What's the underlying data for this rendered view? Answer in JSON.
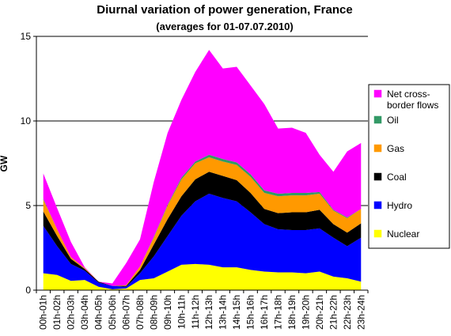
{
  "chart_data": {
    "type": "area",
    "stacked": true,
    "title": "Diurnal variation of power generation, France",
    "subtitle": "(averages for 01-07.07.2010)",
    "xlabel": "",
    "ylabel": "GW",
    "ylim": [
      0,
      15
    ],
    "yticks": [
      "0",
      "5",
      "10",
      "15"
    ],
    "grid": true,
    "legend_position": "right",
    "categories": [
      "00h-01h",
      "01h-02h",
      "02h-03h",
      "03h-04h",
      "04h-05h",
      "05h-06h",
      "06h-07h",
      "07h-08h",
      "08h-09h",
      "09h-10h",
      "10h-11h",
      "11h-12h",
      "12h-13h",
      "13h-14h",
      "14h-15h",
      "15h-16h",
      "16h-17h",
      "17h-18h",
      "18h-19h",
      "19h-20h",
      "20h-21h",
      "21h-22h",
      "22h-23h",
      "23h-24h"
    ],
    "x_tick_labels": [
      "00h-01h",
      "01h-02h",
      "02h-03h",
      "03h-04h",
      "04h-05h",
      "05h-06h",
      "06h-07h",
      "07h-08h",
      "08h-09h",
      "09h-10h",
      "10h-11h",
      "11h-12h",
      "12h-13h",
      "13h-14h",
      "14h-15h",
      "15h-16h",
      "16h-17h",
      "17h-18h",
      "18h-19h",
      "19h-20h",
      "20h-21h",
      "21h-22h",
      "22h-23h",
      "23h-24h"
    ],
    "series": [
      {
        "name": "Nuclear",
        "color": "#ffff00",
        "values": [
          1.0,
          0.9,
          0.55,
          0.6,
          0.2,
          0.05,
          0.1,
          0.6,
          0.7,
          1.1,
          1.5,
          1.55,
          1.5,
          1.35,
          1.35,
          1.2,
          1.1,
          1.05,
          1.05,
          1.0,
          1.1,
          0.8,
          0.7,
          0.5
        ]
      },
      {
        "name": "Hydro",
        "color": "#0000ff",
        "values": [
          2.8,
          1.7,
          1.0,
          0.55,
          0.25,
          0.2,
          0.1,
          0.4,
          1.3,
          2.1,
          2.9,
          3.7,
          4.2,
          4.1,
          3.9,
          3.4,
          2.8,
          2.55,
          2.5,
          2.55,
          2.55,
          2.3,
          1.9,
          2.6
        ]
      },
      {
        "name": "Coal",
        "color": "#000000",
        "values": [
          0.85,
          0.6,
          0.3,
          0.1,
          0.05,
          0.0,
          0.05,
          0.2,
          0.7,
          1.0,
          1.15,
          1.3,
          1.3,
          1.3,
          1.25,
          1.15,
          0.9,
          0.95,
          1.05,
          1.05,
          1.1,
          0.8,
          0.8,
          0.85
        ]
      },
      {
        "name": "Gas",
        "color": "#ff9900",
        "values": [
          0.7,
          0.4,
          0.1,
          0.05,
          0.0,
          0.0,
          0.05,
          0.2,
          0.4,
          0.8,
          1.0,
          0.95,
          0.85,
          0.85,
          0.9,
          0.95,
          0.95,
          1.0,
          1.0,
          1.0,
          0.95,
          0.8,
          0.85,
          0.85
        ]
      },
      {
        "name": "Oil",
        "color": "#339966",
        "values": [
          0.05,
          0.0,
          0.0,
          0.0,
          0.0,
          0.0,
          0.0,
          0.0,
          0.05,
          0.05,
          0.1,
          0.1,
          0.15,
          0.15,
          0.15,
          0.15,
          0.15,
          0.15,
          0.15,
          0.15,
          0.1,
          0.05,
          0.05,
          0.0
        ]
      },
      {
        "name": "Net cross-border flows",
        "color": "#ff00ff",
        "values": [
          1.5,
          1.25,
          0.9,
          0.05,
          0.0,
          0.15,
          1.3,
          1.6,
          3.25,
          4.25,
          4.6,
          5.3,
          6.2,
          5.35,
          5.65,
          5.25,
          5.1,
          3.85,
          3.85,
          3.55,
          2.2,
          2.25,
          3.9,
          3.9
        ]
      }
    ]
  },
  "legend": {
    "items": [
      {
        "label_lines": [
          "Net cross-",
          "border flows"
        ],
        "color": "#ff00ff"
      },
      {
        "label_lines": [
          "Oil"
        ],
        "color": "#339966"
      },
      {
        "label_lines": [
          "Gas"
        ],
        "color": "#ff9900"
      },
      {
        "label_lines": [
          "Coal"
        ],
        "color": "#000000"
      },
      {
        "label_lines": [
          "Hydro"
        ],
        "color": "#0000ff"
      },
      {
        "label_lines": [
          "Nuclear"
        ],
        "color": "#ffff00"
      }
    ]
  }
}
